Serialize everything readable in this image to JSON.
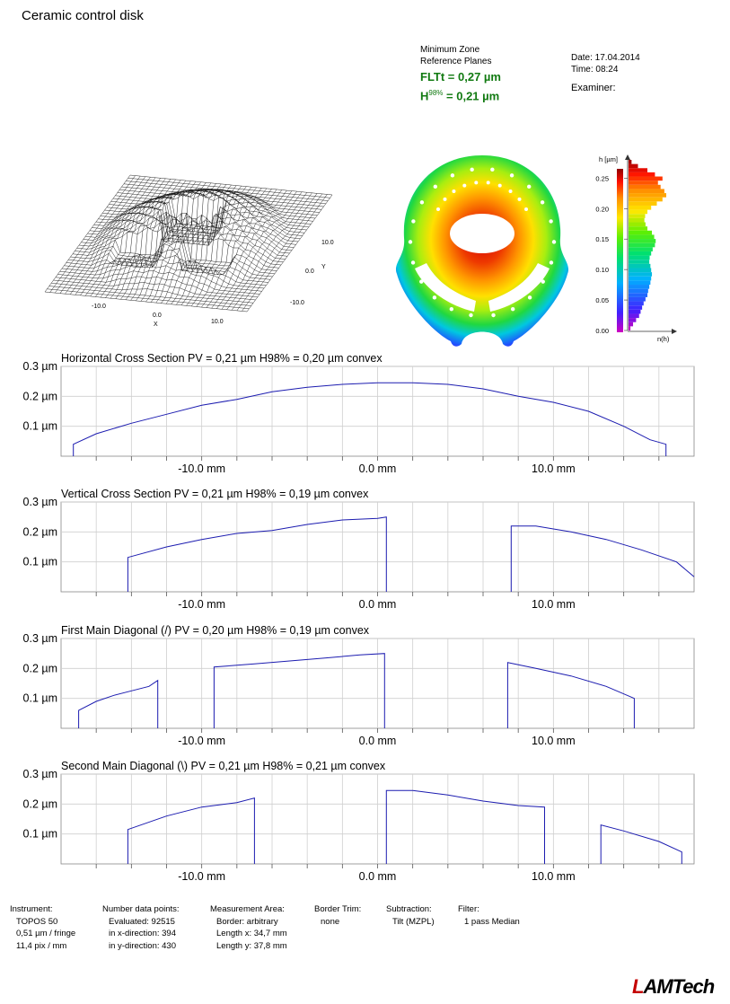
{
  "header": {
    "title": "Ceramic control disk",
    "method_line1": "Minimum Zone",
    "method_line2": "Reference Planes",
    "flt_label": "FLTt = 0,27 µm",
    "h98_prefix": "H",
    "h98_sup": "98%",
    "h98_value": " = 0,21 µm",
    "date": "Date: 17.04.2014",
    "time": "Time: 08:24",
    "examiner": "Examiner:"
  },
  "plot3d": {
    "x_label": "X",
    "y_label": "Y",
    "x_ticks": [
      "-10.0",
      "0.0",
      "10.0"
    ],
    "y_ticks": [
      "10.0",
      "0.0",
      "-10.0"
    ]
  },
  "histogram": {
    "axis_label": "h [µm]",
    "n_label": "n(h)",
    "ticks": [
      "0.25",
      "0.20",
      "0.15",
      "0.10",
      "0.05",
      "0.00"
    ],
    "tick_values": [
      0.25,
      0.2,
      0.15,
      0.1,
      0.05,
      0.0
    ],
    "range": [
      0,
      0.28
    ],
    "counts": [
      0.05,
      0.12,
      0.2,
      0.28,
      0.32,
      0.36,
      0.4,
      0.45,
      0.5,
      0.52,
      0.55,
      0.58,
      0.6,
      0.62,
      0.6,
      0.58,
      0.55,
      0.56,
      0.6,
      0.64,
      0.7,
      0.72,
      0.68,
      0.62,
      0.5,
      0.45,
      0.42,
      0.44,
      0.5,
      0.6,
      0.75,
      0.9,
      1.0,
      0.95,
      0.85,
      0.78,
      0.9,
      0.7,
      0.5,
      0.25,
      0.08
    ]
  },
  "chart_data": [
    {
      "type": "line",
      "title": "Horizontal Cross Section   PV = 0,21 µm   H98% = 0,20 µm   convex",
      "xlabel": "mm",
      "ylabel": "µm",
      "xlim": [
        -18,
        18
      ],
      "ylim": [
        0,
        0.3
      ],
      "x_ticks": [
        -10,
        0,
        10
      ],
      "x_tick_labels": [
        "-10.0 mm",
        "0.0 mm",
        "10.0 mm"
      ],
      "y_ticks": [
        0.1,
        0.2,
        0.3
      ],
      "y_tick_labels": [
        "0.1 µm",
        "0.2 µm",
        "0.3 µm"
      ],
      "segments": [
        {
          "x": [
            -17.3,
            -17.3,
            -16,
            -14,
            -12,
            -10,
            -8,
            -6,
            -4,
            -2,
            0,
            2,
            4,
            6,
            8,
            10,
            12,
            14,
            15.5,
            16.4,
            16.4
          ],
          "y": [
            0,
            0.04,
            0.075,
            0.11,
            0.14,
            0.17,
            0.19,
            0.215,
            0.23,
            0.24,
            0.245,
            0.245,
            0.24,
            0.225,
            0.2,
            0.18,
            0.15,
            0.1,
            0.055,
            0.04,
            0
          ]
        }
      ]
    },
    {
      "type": "line",
      "title": "Vertical Cross Section   PV = 0,21 µm   H98% = 0,19 µm   convex",
      "xlabel": "mm",
      "ylabel": "µm",
      "xlim": [
        -18,
        18
      ],
      "ylim": [
        0,
        0.3
      ],
      "x_ticks": [
        -10,
        0,
        10
      ],
      "x_tick_labels": [
        "-10.0 mm",
        "0.0 mm",
        "10.0 mm"
      ],
      "y_ticks": [
        0.1,
        0.2,
        0.3
      ],
      "y_tick_labels": [
        "0.1 µm",
        "0.2 µm",
        "0.3 µm"
      ],
      "segments": [
        {
          "x": [
            -14.2,
            -14.2,
            -12,
            -10,
            -8,
            -6,
            -4,
            -2,
            0,
            0.5,
            0.5
          ],
          "y": [
            0,
            0.115,
            0.15,
            0.175,
            0.195,
            0.205,
            0.225,
            0.24,
            0.245,
            0.25,
            0
          ]
        },
        {
          "x": [
            7.6,
            7.6,
            9,
            11,
            13,
            15,
            17,
            18
          ],
          "y": [
            0,
            0.22,
            0.22,
            0.2,
            0.175,
            0.14,
            0.1,
            0.05
          ]
        }
      ]
    },
    {
      "type": "line",
      "title": "First Main Diagonal (/)   PV = 0,20 µm   H98% = 0,19 µm   convex",
      "xlabel": "mm",
      "ylabel": "µm",
      "xlim": [
        -18,
        18
      ],
      "ylim": [
        0,
        0.3
      ],
      "x_ticks": [
        -10,
        0,
        10
      ],
      "x_tick_labels": [
        "-10.0 mm",
        "0.0 mm",
        "10.0 mm"
      ],
      "y_ticks": [
        0.1,
        0.2,
        0.3
      ],
      "y_tick_labels": [
        "0.1 µm",
        "0.2 µm",
        "0.3 µm"
      ],
      "segments": [
        {
          "x": [
            -17.0,
            -17.0,
            -16,
            -15,
            -14,
            -13,
            -12.5,
            -12.5
          ],
          "y": [
            0,
            0.06,
            0.09,
            0.11,
            0.125,
            0.14,
            0.16,
            0
          ]
        },
        {
          "x": [
            -9.3,
            -9.3,
            -7,
            -5,
            -3,
            -1,
            0.4,
            0.4
          ],
          "y": [
            0,
            0.205,
            0.215,
            0.225,
            0.235,
            0.245,
            0.25,
            0
          ]
        },
        {
          "x": [
            7.4,
            7.4,
            9,
            11,
            13,
            14.6,
            14.6
          ],
          "y": [
            0,
            0.22,
            0.2,
            0.175,
            0.14,
            0.1,
            0
          ]
        }
      ]
    },
    {
      "type": "line",
      "title": "Second Main Diagonal (\\)   PV = 0,21 µm   H98% = 0,21 µm   convex",
      "xlabel": "mm",
      "ylabel": "µm",
      "xlim": [
        -18,
        18
      ],
      "ylim": [
        0,
        0.3
      ],
      "x_ticks": [
        -10,
        0,
        10
      ],
      "x_tick_labels": [
        "-10.0 mm",
        "0.0 mm",
        "10.0 mm"
      ],
      "y_ticks": [
        0.1,
        0.2,
        0.3
      ],
      "y_tick_labels": [
        "0.1 µm",
        "0.2 µm",
        "0.3 µm"
      ],
      "segments": [
        {
          "x": [
            -14.2,
            -14.2,
            -12,
            -10,
            -8,
            -7,
            -7
          ],
          "y": [
            0,
            0.115,
            0.16,
            0.19,
            0.205,
            0.22,
            0
          ]
        },
        {
          "x": [
            0.5,
            0.5,
            2,
            4,
            6,
            8,
            9.5,
            9.5
          ],
          "y": [
            0,
            0.245,
            0.245,
            0.23,
            0.21,
            0.195,
            0.19,
            0
          ]
        },
        {
          "x": [
            12.7,
            12.7,
            14,
            16,
            17.3,
            17.3
          ],
          "y": [
            0,
            0.13,
            0.11,
            0.075,
            0.04,
            0
          ]
        }
      ]
    }
  ],
  "footer": {
    "instrument": [
      "Instrument:",
      "TOPOS 50",
      "0,51 µm / fringe",
      "11,4 pix / mm"
    ],
    "data_points": [
      "Number data points:",
      "Evaluated: 92515",
      "in x-direction: 394",
      "in y-direction: 430"
    ],
    "area": [
      "Measurement Area:",
      "Border: arbitrary",
      "Length x: 34,7 mm",
      "Length y: 37,8 mm"
    ],
    "border_trim": [
      "Border Trim:",
      "none"
    ],
    "subtraction": [
      "Subtraction:",
      "Tilt (MZPL)"
    ],
    "filter": [
      "Filter:",
      "1 pass Median"
    ]
  },
  "logo": {
    "first": "L",
    "rest": "AMTech"
  }
}
